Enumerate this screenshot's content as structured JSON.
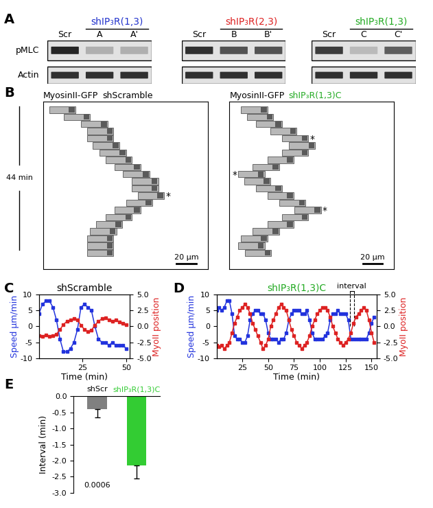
{
  "chart_data": [
    {
      "type": "western_blot",
      "panel": "A",
      "rows": [
        "pMLC",
        "Actin"
      ],
      "blots": [
        {
          "title": "shIP₃R(1,3)",
          "color": "#2233cc",
          "lanes": [
            "Scr",
            "A",
            "A'"
          ],
          "intensity": [
            [
              0.95,
              0.35,
              0.35
            ],
            [
              0.9,
              0.9,
              0.9
            ]
          ]
        },
        {
          "title": "shIP₃R(2,3)",
          "color": "#dd2222",
          "lanes": [
            "Scr",
            "B",
            "B'"
          ],
          "intensity": [
            [
              0.9,
              0.75,
              0.75
            ],
            [
              0.9,
              0.9,
              0.9
            ]
          ]
        },
        {
          "title": "shIP₃R(1,3)",
          "color": "#22aa22",
          "lanes": [
            "Scr",
            "C",
            "C'"
          ],
          "intensity": [
            [
              0.85,
              0.3,
              0.7
            ],
            [
              0.9,
              0.9,
              0.9
            ]
          ]
        }
      ]
    },
    {
      "type": "kymograph",
      "panel": "B",
      "time_bar": {
        "value": 44,
        "label": "44 min"
      },
      "cell_length": 27,
      "times": [
        0,
        2.2,
        4.4,
        6.6,
        8.8,
        11,
        13.2,
        15.4,
        17.6,
        19.8,
        22,
        24.2,
        26.4,
        28.6,
        30.8,
        33,
        35.2,
        37.4,
        39.6,
        41.8,
        44
      ],
      "montages": [
        {
          "name": "MyosinII-GFP",
          "condition": "shScramble",
          "color": "#000000",
          "scale_bar": {
            "value": 20,
            "label": "20 µm"
          },
          "positions": [
            0,
            15,
            33,
            39,
            39,
            45,
            52,
            58,
            67,
            76,
            85,
            85,
            91,
            79,
            67,
            58,
            48,
            42,
            39,
            39,
            39
          ],
          "asterisks": [
            {
              "frame": 12,
              "side": "right",
              "text": "*"
            }
          ]
        },
        {
          "name": "MyosinII-GFP",
          "condition": "shIP₃R(1,3)C",
          "color": "#22aa22",
          "scale_bar": {
            "value": 20,
            "label": "20 µm"
          },
          "positions": [
            6,
            12,
            21,
            36,
            48,
            55,
            48,
            33,
            18,
            3,
            9,
            21,
            33,
            45,
            61,
            48,
            33,
            18,
            6,
            3,
            10
          ],
          "asterisks": [
            {
              "frame": 4,
              "side": "right",
              "text": "*"
            },
            {
              "frame": 9,
              "side": "left",
              "text": "*"
            },
            {
              "frame": 14,
              "side": "right",
              "text": "*"
            }
          ]
        }
      ]
    },
    {
      "type": "line",
      "panel": "C",
      "title": "shScramble",
      "color": "#000000",
      "xlabel": "Time (min)",
      "ylabel": "Speed µm/min",
      "y2label": "MyoII position",
      "x": [
        0,
        2,
        4,
        6,
        8,
        10,
        12,
        14,
        16,
        18,
        20,
        22,
        24,
        26,
        28,
        30,
        32,
        34,
        36,
        38,
        40,
        42,
        44,
        46,
        48,
        50
      ],
      "xlim": [
        0,
        52
      ],
      "xticks": [
        25,
        50
      ],
      "ylim": [
        -10,
        10
      ],
      "yticks": [
        -10,
        -5,
        0,
        5,
        10
      ],
      "y2lim": [
        -5.0,
        5.0
      ],
      "y2ticks": [
        -5.0,
        -2.5,
        0.0,
        2.5,
        5.0
      ],
      "series": [
        {
          "color": "#2233dd",
          "marker": "square",
          "values": [
            4,
            7,
            8,
            8,
            6,
            2,
            -4,
            -8,
            -8,
            -7,
            -5,
            -1,
            6,
            7,
            6,
            5,
            0,
            -4,
            -5,
            -5,
            -6,
            -5,
            -6,
            -6,
            -6,
            -7
          ]
        },
        {
          "color": "#dd2222",
          "marker": "square",
          "axis": "y2",
          "values": [
            -1.5,
            -1.6,
            -1.4,
            -1.6,
            -1.5,
            -1.2,
            -0.5,
            0.3,
            0.8,
            1.0,
            1.2,
            1.0,
            0.2,
            -0.5,
            -0.8,
            -0.6,
            0.2,
            0.8,
            1.2,
            1.3,
            1.0,
            0.8,
            1.0,
            0.7,
            0.5,
            0.3
          ]
        }
      ]
    },
    {
      "type": "line",
      "panel": "D",
      "title": "shIP₃R(1,3)C",
      "color": "#22aa22",
      "xlabel": "Time (min)",
      "ylabel": "Speed µm/min",
      "y2label": "MyoII position",
      "x": [
        0,
        2.5,
        5,
        7.5,
        10,
        12.5,
        15,
        17.5,
        20,
        22.5,
        25,
        27.5,
        30,
        32.5,
        35,
        37.5,
        40,
        42.5,
        45,
        47.5,
        50,
        52.5,
        55,
        57.5,
        60,
        62.5,
        65,
        67.5,
        70,
        72.5,
        75,
        77.5,
        80,
        82.5,
        85,
        87.5,
        90,
        92.5,
        95,
        97.5,
        100,
        102.5,
        105,
        107.5,
        110,
        112.5,
        115,
        117.5,
        120,
        122.5,
        125,
        127.5,
        130,
        132.5,
        135,
        137.5,
        140,
        142.5,
        145,
        147.5,
        150,
        152.5
      ],
      "xlim": [
        0,
        155
      ],
      "xticks": [
        25,
        50,
        75,
        100,
        125,
        150
      ],
      "ylim": [
        -10,
        10
      ],
      "yticks": [
        -10,
        -5,
        0,
        5,
        10
      ],
      "y2lim": [
        -5.0,
        5.0
      ],
      "y2ticks": [
        -5.0,
        -2.5,
        0.0,
        2.5,
        5.0
      ],
      "annotations": [
        {
          "text": "interval",
          "x": [
            129,
            133
          ]
        }
      ],
      "series": [
        {
          "color": "#2233dd",
          "marker": "square",
          "values": [
            5,
            6,
            5,
            6,
            8,
            8,
            4,
            -3,
            -4,
            -4,
            -5,
            -5,
            -3,
            2,
            4,
            5,
            5,
            4,
            4,
            2,
            -2,
            -4,
            -4,
            -4,
            -5,
            -4,
            -4,
            -2,
            2,
            4,
            5,
            5,
            5,
            4,
            4,
            5,
            2,
            -2,
            -4,
            -4,
            -4,
            -4,
            -3,
            -2,
            2,
            4,
            4,
            5,
            4,
            4,
            4,
            2,
            -4,
            -4,
            -4,
            -4,
            -4,
            -4,
            -4,
            -2,
            1,
            3
          ]
        },
        {
          "color": "#dd2222",
          "marker": "square",
          "axis": "y2",
          "values": [
            -3,
            -3.2,
            -3,
            -3.5,
            -3,
            -2.5,
            -1,
            0.5,
            1.5,
            2.5,
            3,
            3.5,
            3,
            2,
            0.5,
            -0.5,
            -1.5,
            -2.5,
            -3.5,
            -3,
            -2,
            0,
            1,
            2,
            3,
            3.5,
            3,
            2.5,
            1,
            -0.5,
            -1.5,
            -2.5,
            -3,
            -3.5,
            -3,
            -2.5,
            -1.5,
            0,
            1,
            2,
            2.5,
            3,
            3,
            2.5,
            1.5,
            0,
            -1,
            -2,
            -2.5,
            -3,
            -2.5,
            -2,
            -1,
            0.5,
            1.5,
            2,
            2.5,
            3,
            2.5,
            1,
            -1,
            -2.5
          ]
        }
      ]
    },
    {
      "type": "bar",
      "panel": "E",
      "categories": [
        "shScr",
        "shIP₃R(1,3)C"
      ],
      "values": [
        -0.4,
        -2.15
      ],
      "errors": [
        0.25,
        0.4
      ],
      "colors": [
        "#808080",
        "#33cc33"
      ],
      "ylabel": "Interval (min)",
      "ylim": [
        -3.0,
        0.0
      ],
      "yticks": [
        -3.0,
        -2.5,
        -2.0,
        -1.5,
        -1.0,
        -0.5,
        0.0
      ],
      "annotations": [
        {
          "text": "0.0006",
          "category": 0
        }
      ]
    }
  ]
}
